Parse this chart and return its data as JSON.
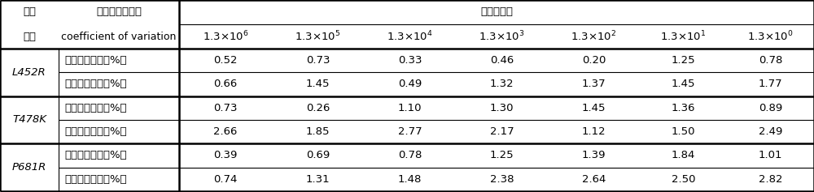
{
  "col_headers": [
    "1.3×10$^6$",
    "1.3×10$^5$",
    "1.3×10$^4$",
    "1.3×10$^3$",
    "1.3×10$^2$",
    "1.3×10$^1$",
    "1.3×10$^0$"
  ],
  "row_groups": [
    {
      "name": "L452R",
      "rows": [
        {
          "label": "批内变异系数（%）",
          "values": [
            "0.52",
            "0.73",
            "0.33",
            "0.46",
            "0.20",
            "1.25",
            "0.78"
          ]
        },
        {
          "label": "批间变异系数（%）",
          "values": [
            "0.66",
            "1.45",
            "0.49",
            "1.32",
            "1.37",
            "1.45",
            "1.77"
          ]
        }
      ]
    },
    {
      "name": "T478K",
      "rows": [
        {
          "label": "批内变异系数（%）",
          "values": [
            "0.73",
            "0.26",
            "1.10",
            "1.30",
            "1.45",
            "1.36",
            "0.89"
          ]
        },
        {
          "label": "批间变异系数（%）",
          "values": [
            "2.66",
            "1.85",
            "2.77",
            "2.17",
            "1.12",
            "1.50",
            "2.49"
          ]
        }
      ]
    },
    {
      "name": "P681R",
      "rows": [
        {
          "label": "批内变异系数（%）",
          "values": [
            "0.39",
            "0.69",
            "0.78",
            "1.25",
            "1.39",
            "1.84",
            "1.01"
          ]
        },
        {
          "label": "批间变异系数（%）",
          "values": [
            "0.74",
            "1.31",
            "1.48",
            "2.38",
            "2.64",
            "2.50",
            "2.82"
          ]
        }
      ]
    }
  ],
  "header_zh1": "变异",
  "header_zh2": "名称",
  "header_cv1": "重复性变异系数",
  "header_cv2": "coefficient of variation",
  "header_mban": "模板拷贝数",
  "font_size": 9.5,
  "bg_color": "#ffffff",
  "line_color": "#000000",
  "text_color": "#000000",
  "col_bounds": [
    0.0,
    0.072,
    0.22,
    0.334,
    0.447,
    0.56,
    0.673,
    0.786,
    0.893,
    1.0
  ],
  "row_bounds": [
    1.0,
    0.748,
    0.624,
    0.5,
    0.376,
    0.252,
    0.128,
    0.004
  ],
  "lw_thick": 1.8,
  "lw_thin": 0.8
}
